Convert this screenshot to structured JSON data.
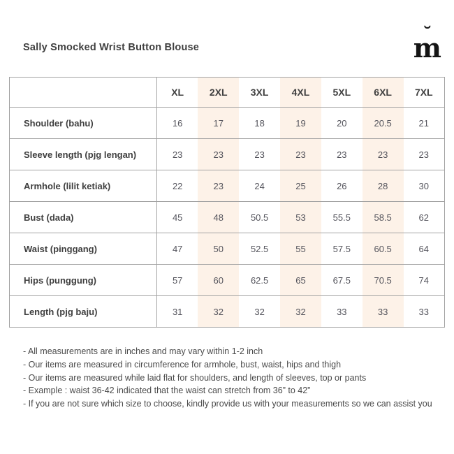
{
  "header": {
    "title": "Sally Smocked Wrist Button Blouse",
    "logo": {
      "letter": "m",
      "breve": "˘"
    }
  },
  "size_table": {
    "sizes": [
      "XL",
      "2XL",
      "3XL",
      "4XL",
      "5XL",
      "6XL",
      "7XL"
    ],
    "highlighted_sizes": [
      "2XL",
      "4XL",
      "6XL"
    ],
    "rows": [
      {
        "label": "Shoulder (bahu)",
        "values": [
          "16",
          "17",
          "18",
          "19",
          "20",
          "20.5",
          "21"
        ]
      },
      {
        "label": "Sleeve length (pjg lengan)",
        "values": [
          "23",
          "23",
          "23",
          "23",
          "23",
          "23",
          "23"
        ]
      },
      {
        "label": "Armhole (lilit ketiak)",
        "values": [
          "22",
          "23",
          "24",
          "25",
          "26",
          "28",
          "30"
        ]
      },
      {
        "label": "Bust (dada)",
        "values": [
          "45",
          "48",
          "50.5",
          "53",
          "55.5",
          "58.5",
          "62"
        ]
      },
      {
        "label": "Waist (pinggang)",
        "values": [
          "47",
          "50",
          "52.5",
          "55",
          "57.5",
          "60.5",
          "64"
        ]
      },
      {
        "label": "Hips (punggung)",
        "values": [
          "57",
          "60",
          "62.5",
          "65",
          "67.5",
          "70.5",
          "74"
        ]
      },
      {
        "label": "Length (pjg baju)",
        "values": [
          "31",
          "32",
          "32",
          "32",
          "33",
          "33",
          "33"
        ]
      }
    ]
  },
  "notes": [
    "- All measurements are in inches and may vary within 1-2 inch",
    "- Our items are measured in circumference for armhole, bust, waist, hips and thigh",
    "- Our items are measured while laid flat for shoulders, and length of sleeves, top or pants",
    "- Example : waist 36-42 indicated that the waist can stretch from 36” to 42”",
    "- If you are not sure which size to choose, kindly provide us with your measurements so we can assist you"
  ],
  "colors": {
    "highlight": "#fdf2e8",
    "border": "#a3a3a3",
    "label_text": "#3f3f3f",
    "value_text": "#54545c",
    "logo": "#141414",
    "background": "#ffffff"
  }
}
